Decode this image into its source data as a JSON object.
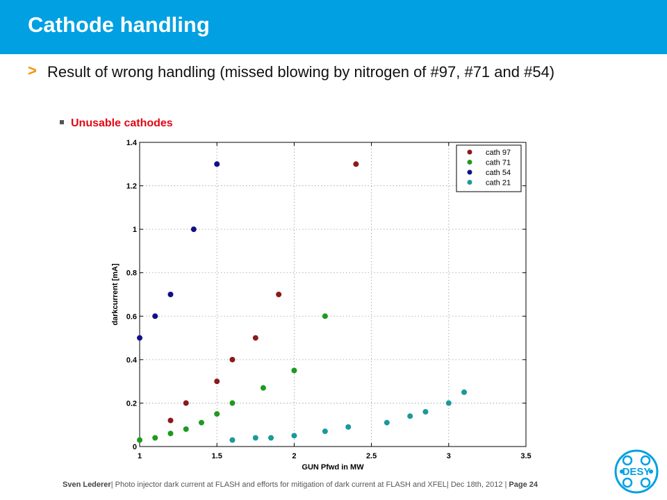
{
  "slide": {
    "title": "Cathode handling",
    "bullet_marker": ">",
    "bullet": "Result of wrong handling (missed blowing by nitrogen of #97, #71 and #54)",
    "sub_bullet": "Unusable cathodes"
  },
  "footer": {
    "author": "Sven Lederer",
    "text": "| Photo injector dark current at FLASH and efforts for mitigation of dark current at FLASH and XFEL| Dec 18th, 2012 | ",
    "page": "Page 24"
  },
  "logo": {
    "text": "DESY",
    "color": "#00a0e3"
  },
  "colors": {
    "title_bar": "#00a0e3",
    "bullet_marker": "#f39200",
    "sub_bullet": "#e30613"
  },
  "chart_data": {
    "type": "scatter",
    "xlabel": "GUN Pfwd in MW",
    "ylabel": "darkcurrent [mA]",
    "xlim": [
      1,
      3.5
    ],
    "ylim": [
      0,
      1.4
    ],
    "xticks": [
      "1",
      "1.5",
      "2",
      "2.5",
      "3",
      "3.5"
    ],
    "yticks": [
      "0",
      "0.2",
      "0.4",
      "0.6",
      "0.8",
      "1",
      "1.2",
      "1.4"
    ],
    "grid": true,
    "legend_position": "top-right",
    "series": [
      {
        "name": "cath 97",
        "color": "#8b1a1a",
        "x": [
          1.2,
          1.3,
          1.5,
          1.6,
          1.75,
          1.9,
          2.4
        ],
        "y": [
          0.12,
          0.2,
          0.3,
          0.4,
          0.5,
          0.7,
          1.3
        ]
      },
      {
        "name": "cath 71",
        "color": "#1e9a1e",
        "x": [
          1.0,
          1.1,
          1.2,
          1.3,
          1.4,
          1.5,
          1.6,
          1.8,
          2.0,
          2.2
        ],
        "y": [
          0.03,
          0.04,
          0.06,
          0.08,
          0.11,
          0.15,
          0.2,
          0.27,
          0.35,
          0.6
        ]
      },
      {
        "name": "cath 54",
        "color": "#10108a",
        "x": [
          1.0,
          1.1,
          1.2,
          1.35,
          1.5
        ],
        "y": [
          0.5,
          0.6,
          0.7,
          1.0,
          1.3
        ]
      },
      {
        "name": "cath 21",
        "color": "#1a9a9a",
        "x": [
          1.6,
          1.75,
          1.85,
          2.0,
          2.2,
          2.35,
          2.6,
          2.75,
          2.85,
          3.0,
          3.1
        ],
        "y": [
          0.03,
          0.04,
          0.04,
          0.05,
          0.07,
          0.09,
          0.11,
          0.14,
          0.16,
          0.2,
          0.25
        ]
      }
    ]
  }
}
